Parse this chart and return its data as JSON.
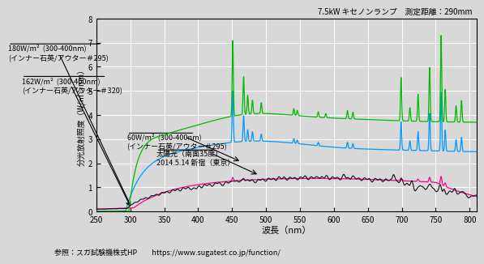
{
  "title_top": "7.5kW キセノンランプ　測定距離：290mm",
  "xlabel": "波長（nm）",
  "ylabel": "分光放射照度（W/㎡シnm）",
  "xlim": [
    250,
    810
  ],
  "ylim": [
    0,
    8
  ],
  "yticks": [
    0,
    1,
    2,
    3,
    4,
    5,
    6,
    7,
    8
  ],
  "xticks": [
    250,
    300,
    350,
    400,
    450,
    500,
    550,
    600,
    650,
    700,
    750,
    800
  ],
  "footer": "参照：スガ試験機株式HP　　https://www.sugatest.co.jp/function/",
  "background_color": "#d8d8d8",
  "plot_background": "#d8d8d8",
  "grid_color": "white",
  "line_colors": {
    "green_high": "#00bb00",
    "blue": "#0099ff",
    "magenta": "#ff0088",
    "black": "#111111"
  },
  "ann1_text1": "180W/m²  (300-400nm)",
  "ann1_text2": "(インナー石英/アウター＃295)",
  "ann2_text1": "162W/m²  (300-400nm)",
  "ann2_text2": "(インナー石英/アウター＃320)",
  "ann3_text1": "60W/m²  (300-400nm)",
  "ann3_text2": "(インナー石英/アウター＃295)",
  "ann4_text1": "太陽光（南面35度）",
  "ann4_text2": "2014.5.14 新宿（東京）"
}
